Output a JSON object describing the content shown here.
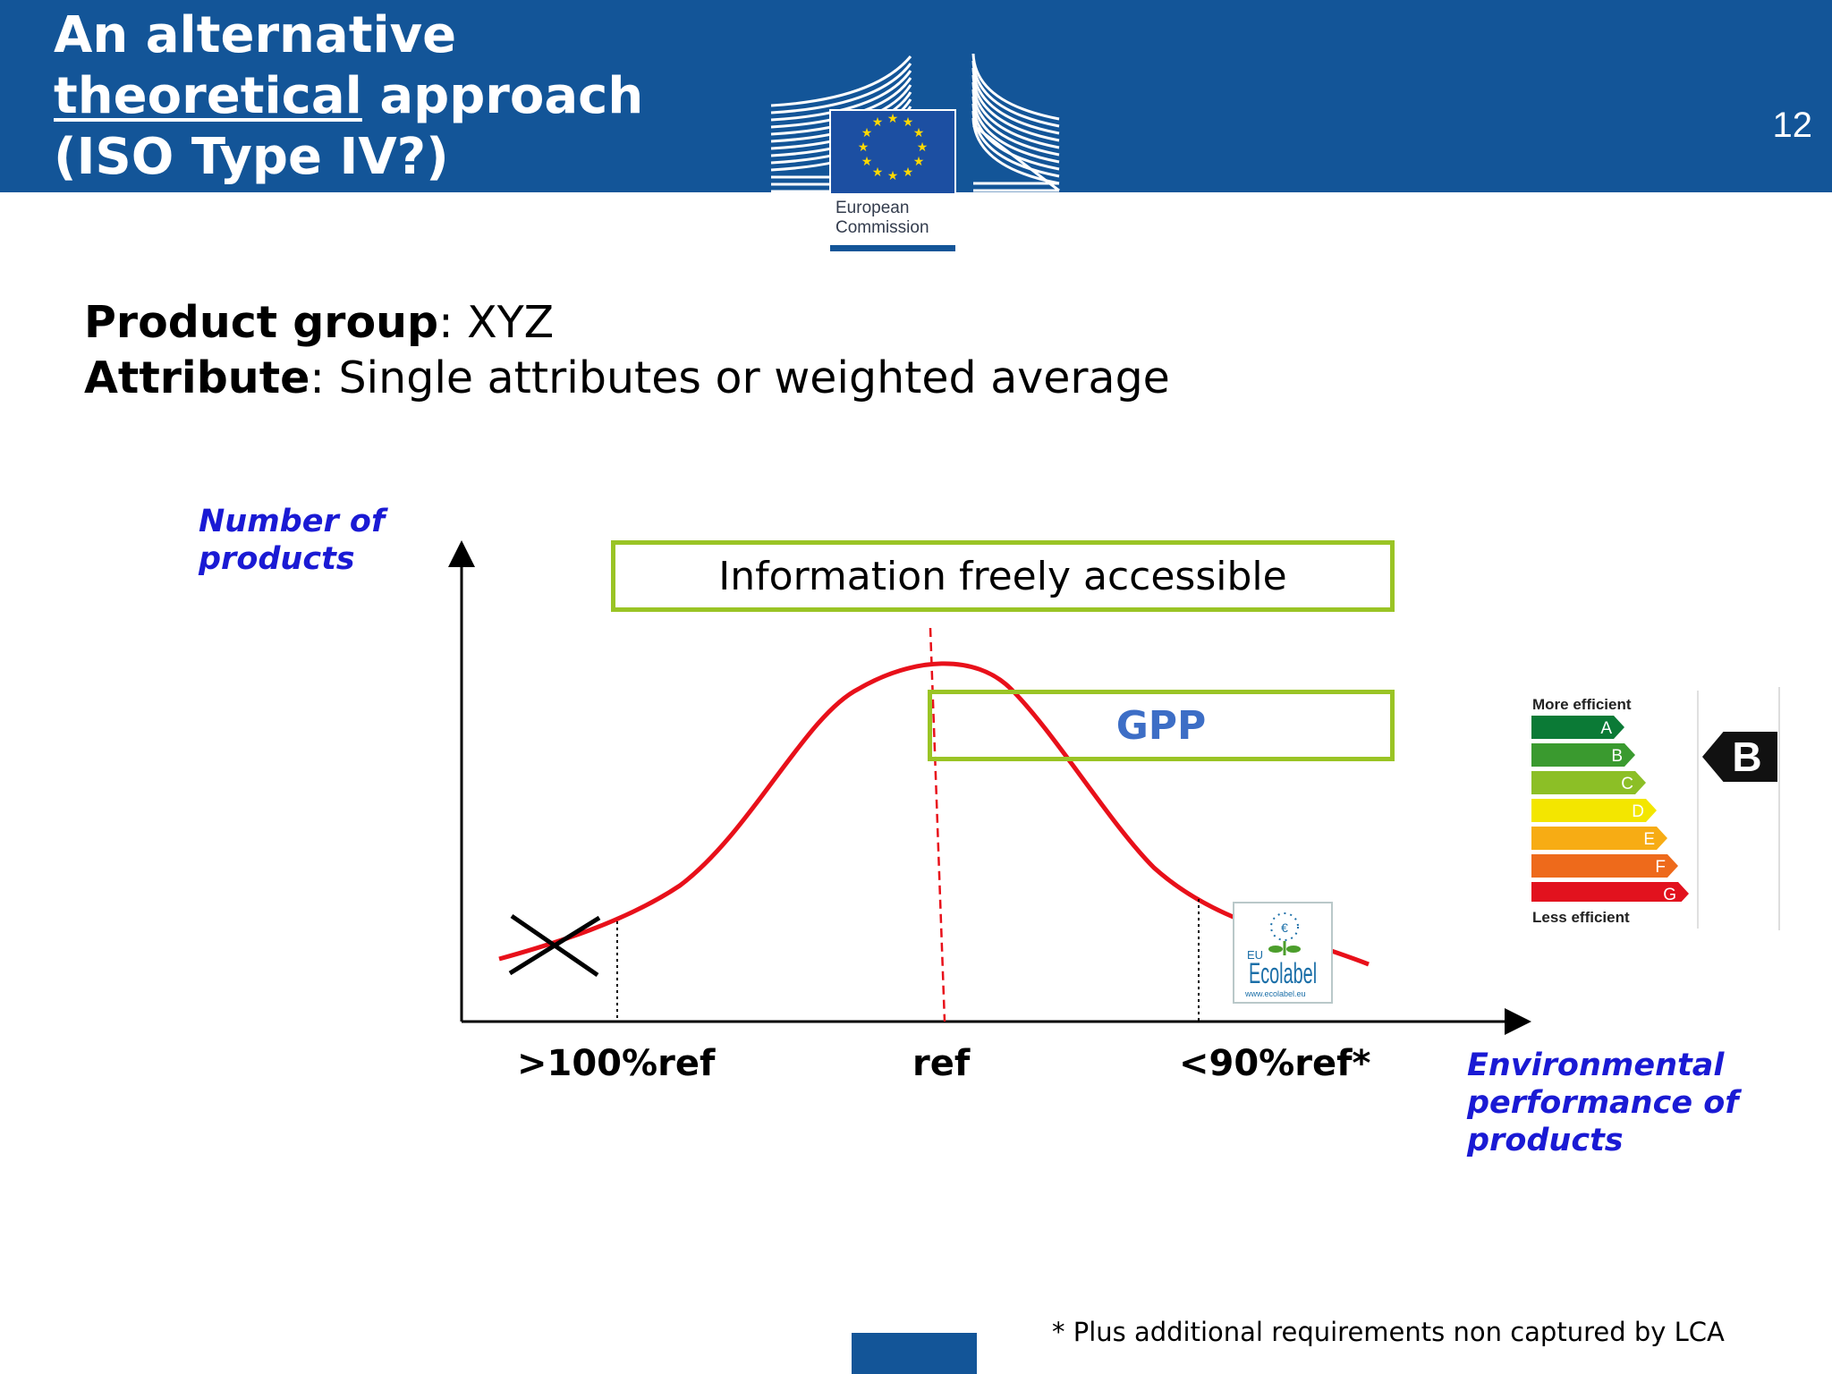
{
  "header": {
    "title_line1": "An alternative",
    "title_underlined": "theoretical",
    "title_line2_rest": " approach",
    "title_line3": "(ISO Type IV?)",
    "page_number": "12",
    "logo_line1": "European",
    "logo_line2": "Commission",
    "bg_color": "#135598"
  },
  "intro": {
    "product_group_label": "Product group",
    "product_group_value": ": XYZ",
    "attribute_label": "Attribute",
    "attribute_value": ": Single attributes or weighted average"
  },
  "chart_data": {
    "type": "line",
    "ylabel_line1": "Number of",
    "ylabel_line2": "products",
    "xlabel_line1": "Environmental",
    "xlabel_line2": "performance of",
    "xlabel_line3": "products",
    "x_ticks": [
      ">100%ref",
      "ref",
      "<90%ref*"
    ],
    "regions": {
      "information": "Information freely accessible",
      "gpp": "GPP"
    },
    "curve_color": "#e8101a",
    "box_color": "#9ac425"
  },
  "ecolabel": {
    "eu": "EU",
    "name": "Ecolabel",
    "url": "www.ecolabel.eu"
  },
  "energy_label": {
    "top": "More efficient",
    "bottom": "Less efficient",
    "classes": [
      "A",
      "B",
      "C",
      "D",
      "E",
      "F",
      "G"
    ],
    "colors": [
      "#0b7a36",
      "#3a9a2f",
      "#8cbf26",
      "#f3e600",
      "#f7ac14",
      "#ee6a1b",
      "#e2121e"
    ],
    "rating": "B"
  },
  "footnote": "* Plus additional requirements non captured by LCA"
}
